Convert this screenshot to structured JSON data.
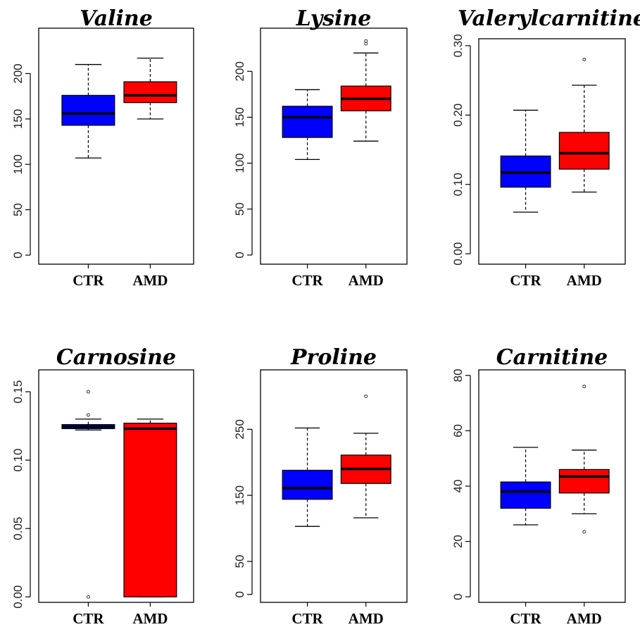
{
  "colors": {
    "CTR": "#0000ff",
    "AMD": "#ff0000"
  },
  "chart_data": [
    {
      "type": "box",
      "title": "Valine",
      "categories": [
        "CTR",
        "AMD"
      ],
      "ylim": [
        -10,
        250
      ],
      "yticks": [
        0,
        50,
        100,
        150,
        200
      ],
      "series": [
        {
          "category": "CTR",
          "min": 107,
          "q1": 143,
          "median": 156,
          "q3": 176,
          "max": 210,
          "outliers": []
        },
        {
          "category": "AMD",
          "min": 150,
          "q1": 168,
          "median": 176,
          "q3": 191,
          "max": 217,
          "outliers": []
        }
      ]
    },
    {
      "type": "box",
      "title": "Lysine",
      "categories": [
        "CTR",
        "AMD"
      ],
      "ylim": [
        -10,
        247
      ],
      "yticks": [
        0,
        50,
        100,
        150,
        200
      ],
      "series": [
        {
          "category": "CTR",
          "min": 104,
          "q1": 128,
          "median": 150,
          "q3": 162,
          "max": 180,
          "outliers": []
        },
        {
          "category": "AMD",
          "min": 124,
          "q1": 157,
          "median": 170,
          "q3": 184,
          "max": 220,
          "outliers": [
            230,
            233
          ]
        }
      ]
    },
    {
      "type": "box",
      "title": "Valerylcarnitine",
      "categories": [
        "CTR",
        "AMD"
      ],
      "ylim": [
        -0.015,
        0.31
      ],
      "yticks": [
        0.0,
        0.1,
        0.2,
        0.3
      ],
      "yticklabels": [
        "0.00",
        "0.10",
        "0.20",
        "0.30"
      ],
      "series": [
        {
          "category": "CTR",
          "min": 0.06,
          "q1": 0.096,
          "median": 0.117,
          "q3": 0.141,
          "max": 0.207,
          "outliers": []
        },
        {
          "category": "AMD",
          "min": 0.089,
          "q1": 0.122,
          "median": 0.145,
          "q3": 0.175,
          "max": 0.243,
          "outliers": [
            0.28
          ]
        }
      ]
    },
    {
      "type": "box",
      "title": "Carnosine",
      "categories": [
        "CTR",
        "AMD"
      ],
      "ylim": [
        -0.004,
        0.166
      ],
      "yticks": [
        0.0,
        0.05,
        0.1,
        0.15
      ],
      "yticklabels": [
        "0.00",
        "0.05",
        "0.10",
        "0.15"
      ],
      "series": [
        {
          "category": "CTR",
          "min": 0.122,
          "q1": 0.123,
          "median": 0.1245,
          "q3": 0.126,
          "max": 0.13,
          "outliers": [
            0.15,
            0.133,
            0.0
          ]
        },
        {
          "category": "AMD",
          "min": 0.0,
          "q1": 0.0,
          "median": 0.123,
          "q3": 0.127,
          "max": 0.13,
          "outliers": []
        }
      ]
    },
    {
      "type": "box",
      "title": "Proline",
      "categories": [
        "CTR",
        "AMD"
      ],
      "ylim": [
        -12,
        340
      ],
      "yticks": [
        0,
        50,
        150,
        250
      ],
      "series": [
        {
          "category": "CTR",
          "min": 103,
          "q1": 144,
          "median": 161,
          "q3": 188,
          "max": 252,
          "outliers": []
        },
        {
          "category": "AMD",
          "min": 116,
          "q1": 168,
          "median": 190,
          "q3": 211,
          "max": 244,
          "outliers": [
            300
          ]
        }
      ]
    },
    {
      "type": "box",
      "title": "Carnitine",
      "categories": [
        "CTR",
        "AMD"
      ],
      "ylim": [
        -2,
        82
      ],
      "yticks": [
        0,
        20,
        40,
        60,
        80
      ],
      "series": [
        {
          "category": "CTR",
          "min": 26,
          "q1": 32,
          "median": 38,
          "q3": 41.5,
          "max": 54,
          "outliers": []
        },
        {
          "category": "AMD",
          "min": 30,
          "q1": 37.5,
          "median": 43.5,
          "q3": 46,
          "max": 53,
          "outliers": [
            76,
            23.5
          ]
        }
      ]
    }
  ]
}
